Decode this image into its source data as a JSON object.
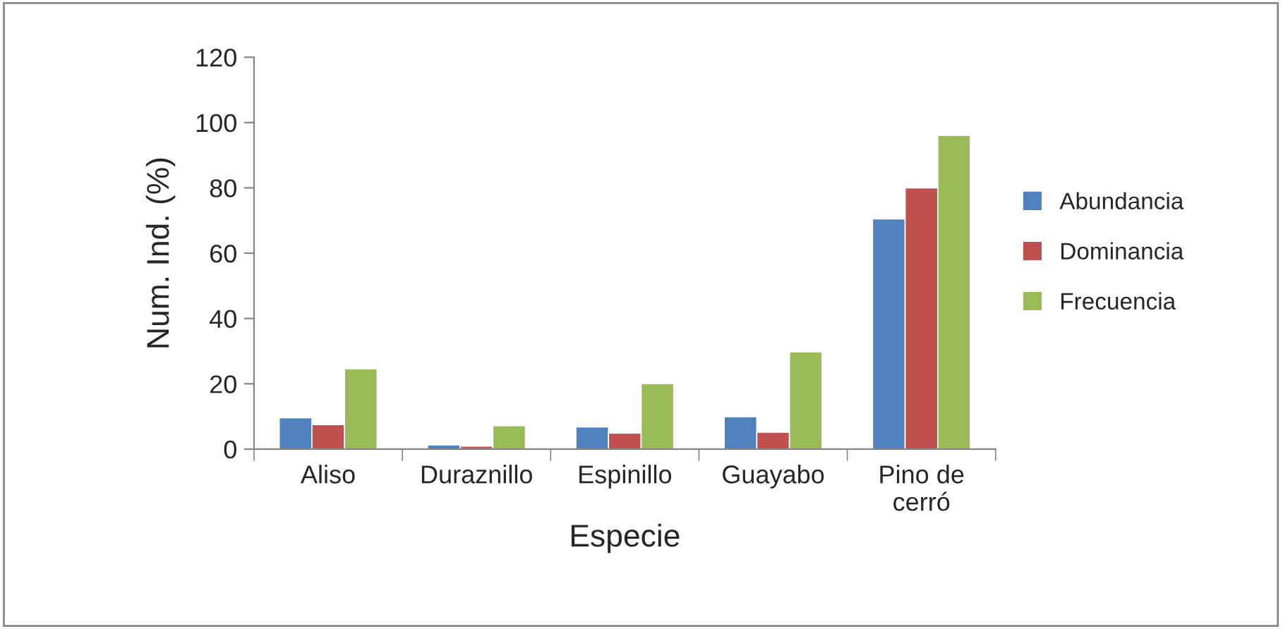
{
  "chart_data": {
    "type": "bar",
    "xlabel": "Especie",
    "ylabel": "Num. Ind. (%)",
    "categories": [
      "Aliso",
      "Duraznillo",
      "Espinillo",
      "Guayabo",
      "Pino de\ncerró"
    ],
    "series": [
      {
        "name": "Abundancia",
        "color": "#4f81bd",
        "values": [
          9.6,
          1.3,
          6.8,
          9.9,
          70.5
        ]
      },
      {
        "name": "Dominancia",
        "color": "#c0504d",
        "values": [
          7.5,
          0.9,
          4.9,
          5.2,
          80
        ]
      },
      {
        "name": "Frecuencia",
        "color": "#9bbb59",
        "values": [
          24.6,
          7.2,
          20.1,
          29.8,
          96.1
        ]
      }
    ],
    "ylim": [
      0,
      120
    ],
    "yticks": [
      0,
      20,
      40,
      60,
      80,
      100,
      120
    ],
    "grid": false,
    "legend": "right"
  }
}
